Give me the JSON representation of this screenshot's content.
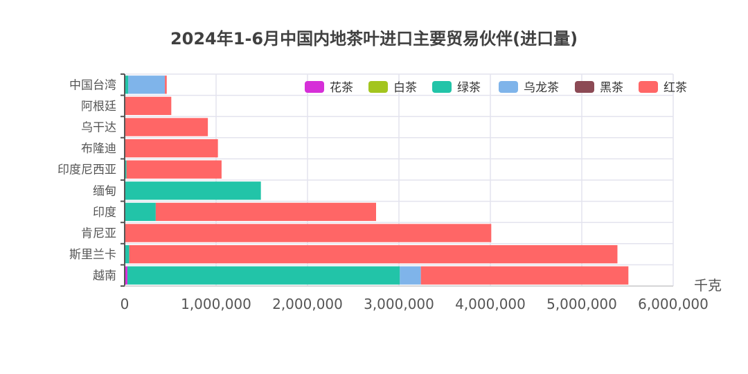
{
  "chart_data": {
    "type": "bar",
    "orientation": "horizontal",
    "stacked": true,
    "title": "2024年1-6月中国内地茶叶进口主要贸易伙伴(进口量)",
    "xlabel": "千克",
    "ylabel": "",
    "xlim": [
      0,
      6000000
    ],
    "xticks": [
      "0",
      "1,000,000",
      "2,000,000",
      "3,000,000",
      "4,000,000",
      "5,000,000",
      "6,000,000"
    ],
    "grid": true,
    "legend_position": "top-right",
    "categories": [
      "中国台湾",
      "阿根廷",
      "乌干达",
      "布隆迪",
      "印度尼西亚",
      "缅甸",
      "印度",
      "肯尼亚",
      "斯里兰卡",
      "越南"
    ],
    "series": [
      {
        "name": "花茶",
        "color": "#d62fd8",
        "values": [
          0,
          0,
          0,
          0,
          0,
          0,
          0,
          0,
          0,
          30000
        ]
      },
      {
        "name": "白茶",
        "color": "#a3c51f",
        "values": [
          0,
          0,
          0,
          0,
          0,
          0,
          0,
          0,
          0,
          0
        ]
      },
      {
        "name": "绿茶",
        "color": "#22c4a8",
        "values": [
          40000,
          0,
          0,
          0,
          20000,
          1490000,
          340000,
          0,
          50000,
          2980000
        ]
      },
      {
        "name": "乌龙茶",
        "color": "#7fb4ea",
        "values": [
          400000,
          0,
          0,
          0,
          0,
          0,
          0,
          0,
          0,
          230000
        ]
      },
      {
        "name": "黑茶",
        "color": "#8c4a55",
        "values": [
          0,
          0,
          0,
          0,
          0,
          0,
          0,
          0,
          0,
          0
        ]
      },
      {
        "name": "红茶",
        "color": "#ff6666",
        "values": [
          20000,
          510000,
          910000,
          1020000,
          1040000,
          0,
          2410000,
          4010000,
          5340000,
          2270000
        ]
      }
    ]
  }
}
